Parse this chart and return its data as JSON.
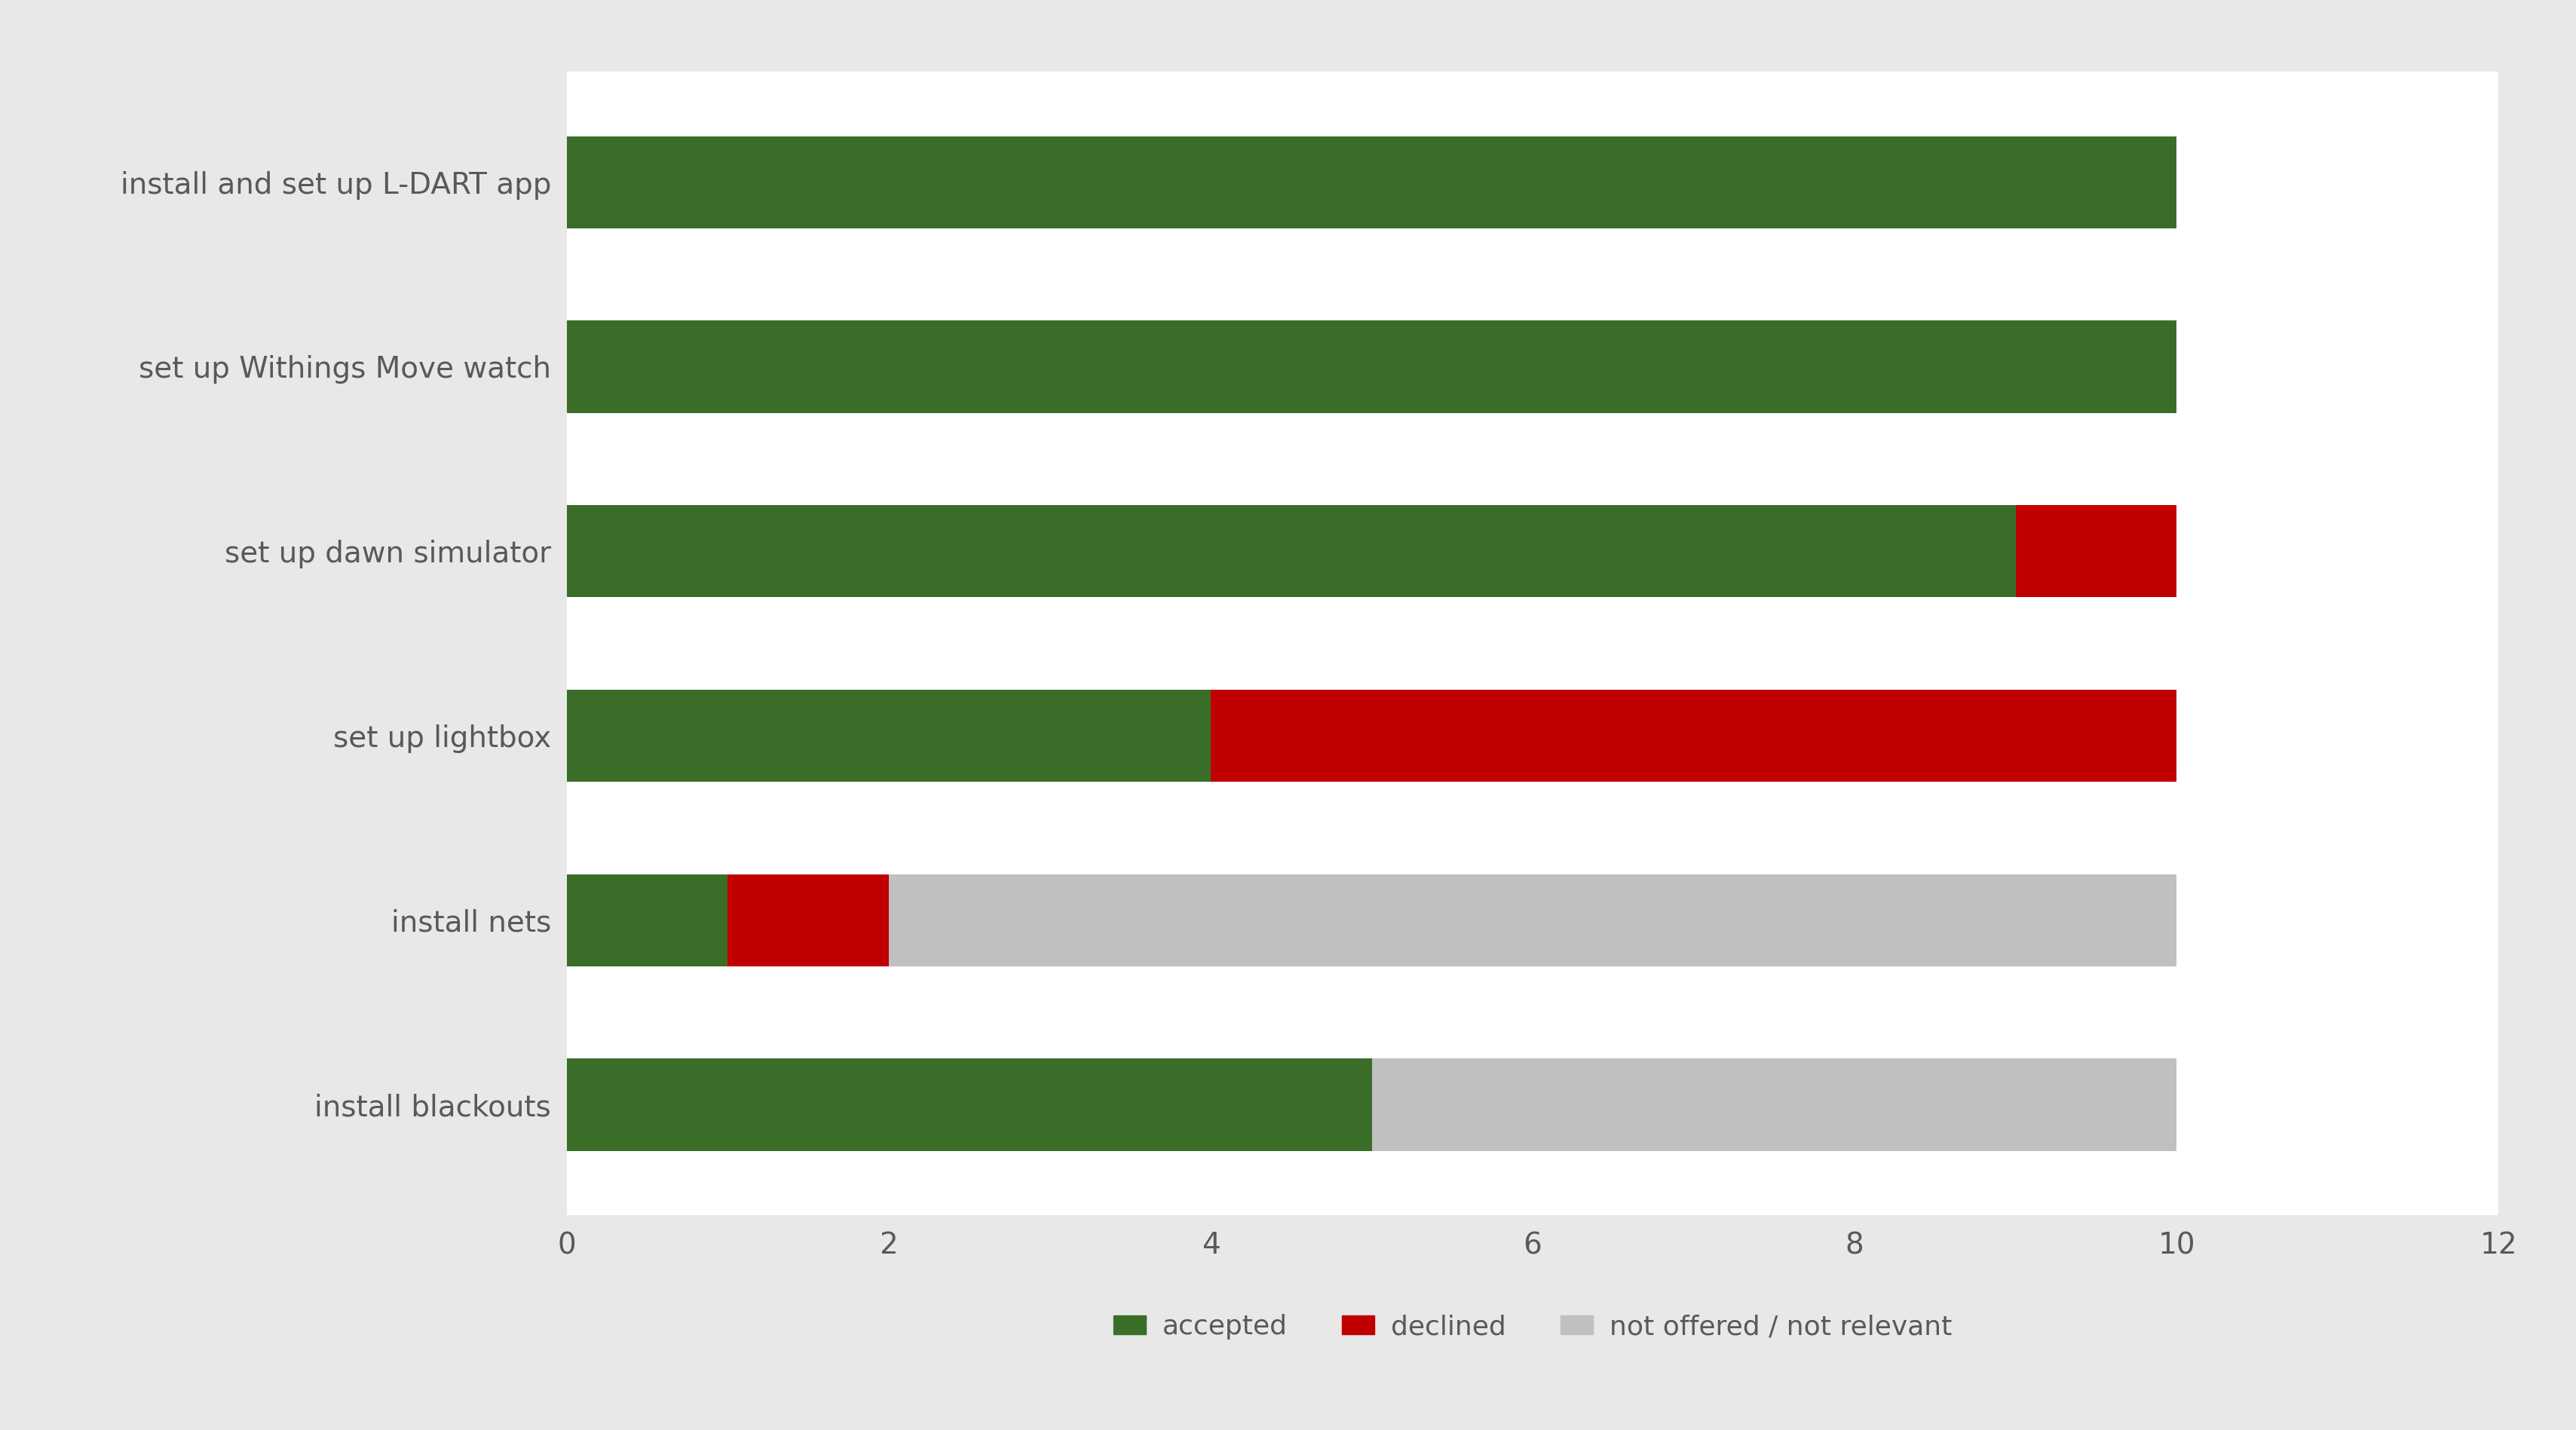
{
  "categories": [
    "install blackouts",
    "install nets",
    "set up lightbox",
    "set up dawn simulator",
    "set up Withings Move watch",
    "install and set up L-DART app"
  ],
  "accepted": [
    5,
    1,
    4,
    9,
    10,
    10
  ],
  "declined": [
    0,
    1,
    6,
    1,
    0,
    0
  ],
  "not_offered": [
    5,
    8,
    0,
    0,
    0,
    0
  ],
  "color_accepted": "#3a6e28",
  "color_declined": "#c00000",
  "color_not_offered": "#c0c0c0",
  "label_accepted": "accepted",
  "label_declined": "declined",
  "label_not_offered": "not offered / not relevant",
  "xlim": [
    0,
    12
  ],
  "xticks": [
    0,
    2,
    4,
    6,
    8,
    10,
    12
  ],
  "plot_bg_color": "#ffffff",
  "fig_bg_color": "#e8e8e8",
  "grid_color": "#ffffff",
  "bar_height": 0.5,
  "tick_fontsize": 28,
  "label_fontsize": 28,
  "legend_fontsize": 26,
  "ytick_color": "#595959",
  "xtick_color": "#595959"
}
